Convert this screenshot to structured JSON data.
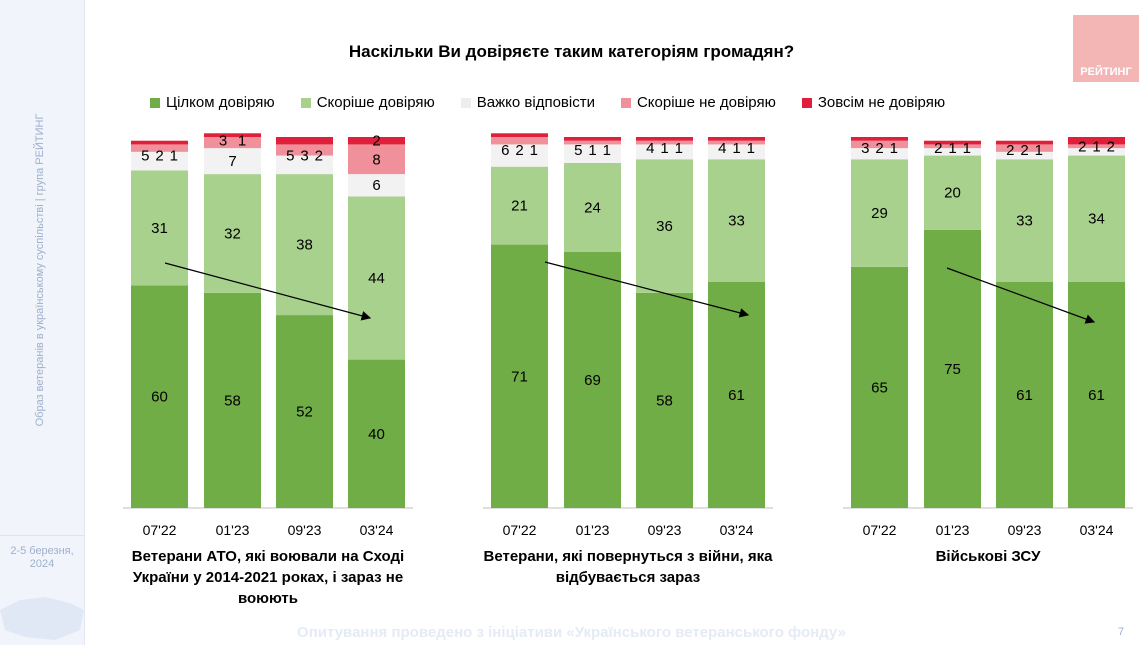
{
  "sidebar": {
    "vertical_text": "Образ ветеранів в українському суспільстві | група РЕЙТИНГ",
    "date": "2-5 березня, 2024"
  },
  "logo": "РЕЙТИНГ",
  "footer": "Опитування проведено з ініціативи «Українського ветеранського фонду»",
  "page_number": "7",
  "chart_data": {
    "type": "stacked-bar",
    "title": "Наскільки Ви довіряєте таким категоріям громадян?",
    "legend_position": "top",
    "series": [
      {
        "name": "Цілком довіряю",
        "color": "#70AD47"
      },
      {
        "name": "Скоріше довіряю",
        "color": "#A9D18E"
      },
      {
        "name": "Важко відповісти",
        "color": "#F2F2F2"
      },
      {
        "name": "Скоріше не довіряю",
        "color": "#F0909B"
      },
      {
        "name": "Зовсім не довіряю",
        "color": "#E0203A"
      }
    ],
    "ylim": [
      0,
      100
    ],
    "groups": [
      {
        "label": "Ветерани АТО, які воювали на Сході України у 2014-2021 роках, і зараз не воюють",
        "categories": [
          "07'22",
          "01'23",
          "09'23",
          "03'24"
        ],
        "values": [
          [
            60,
            31,
            5,
            2,
            1
          ],
          [
            58,
            32,
            7,
            3,
            1
          ],
          [
            52,
            38,
            5,
            3,
            2
          ],
          [
            40,
            44,
            6,
            8,
            2
          ]
        ]
      },
      {
        "label": "Ветерани, які повернуться з війни, яка відбувається зараз",
        "categories": [
          "07'22",
          "01'23",
          "09'23",
          "03'24"
        ],
        "values": [
          [
            71,
            21,
            6,
            2,
            1
          ],
          [
            69,
            24,
            5,
            1,
            1
          ],
          [
            58,
            36,
            4,
            1,
            1
          ],
          [
            61,
            33,
            4,
            1,
            1
          ]
        ]
      },
      {
        "label": "Військові ЗСУ",
        "categories": [
          "07'22",
          "01'23",
          "09'23",
          "03'24"
        ],
        "values": [
          [
            65,
            29,
            3,
            2,
            1
          ],
          [
            75,
            20,
            2,
            1,
            1
          ],
          [
            61,
            33,
            2,
            2,
            1
          ],
          [
            61,
            34,
            2,
            1,
            2
          ]
        ]
      }
    ]
  }
}
